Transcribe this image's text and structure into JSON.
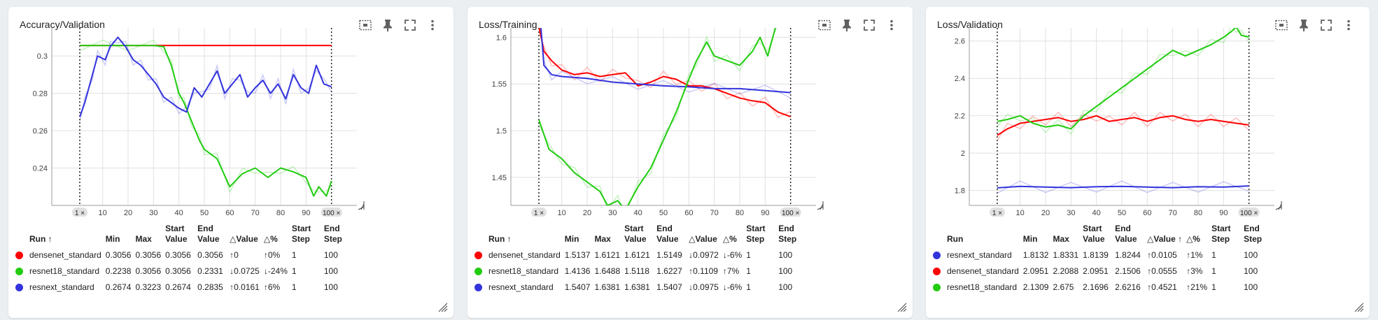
{
  "colors": {
    "red": "#ff0000",
    "green": "#22cc11",
    "blue": "#3333dd"
  },
  "toolbar_icons": [
    "fit-domain-icon",
    "pin-icon",
    "fullscreen-icon",
    "more-vert-icon"
  ],
  "panels": [
    {
      "title": "Accuracy/Validation",
      "headers": [
        "Run ↑",
        "Min",
        "Max",
        "Start Value",
        "End Value",
        "△Value",
        "△%",
        "Start Step",
        "End Step"
      ],
      "rows": [
        {
          "color": "red",
          "run": "densenet_standard",
          "min": "0.3056",
          "max": "0.3056",
          "start": "0.3056",
          "end": "0.3056",
          "dval": "↑0",
          "dpct": "↑0%",
          "sstep": "1",
          "estep": "100"
        },
        {
          "color": "green",
          "run": "resnet18_standard",
          "min": "0.2238",
          "max": "0.3056",
          "start": "0.3056",
          "end": "0.2331",
          "dval": "↓0.0725",
          "dpct": "↓-24%",
          "sstep": "1",
          "estep": "100"
        },
        {
          "color": "blue",
          "run": "resnext_standard",
          "min": "0.2674",
          "max": "0.3223",
          "start": "0.2674",
          "end": "0.2835",
          "dval": "↑0.0161",
          "dpct": "↑6%",
          "sstep": "1",
          "estep": "100"
        }
      ]
    },
    {
      "title": "Loss/Training",
      "headers": [
        "Run ↑",
        "Min",
        "Max",
        "Start Value",
        "End Value",
        "△Value",
        "△%",
        "Start Step",
        "End Step"
      ],
      "rows": [
        {
          "color": "red",
          "run": "densenet_standard",
          "min": "1.5137",
          "max": "1.6121",
          "start": "1.6121",
          "end": "1.5149",
          "dval": "↓0.0972",
          "dpct": "↓-6%",
          "sstep": "1",
          "estep": "100"
        },
        {
          "color": "green",
          "run": "resnet18_standard",
          "min": "1.4136",
          "max": "1.6488",
          "start": "1.5118",
          "end": "1.6227",
          "dval": "↑0.1109",
          "dpct": "↑7%",
          "sstep": "1",
          "estep": "100"
        },
        {
          "color": "blue",
          "run": "resnext_standard",
          "min": "1.5407",
          "max": "1.6381",
          "start": "1.6381",
          "end": "1.5407",
          "dval": "↓0.0975",
          "dpct": "↓-6%",
          "sstep": "1",
          "estep": "100"
        }
      ]
    },
    {
      "title": "Loss/Validation",
      "headers": [
        "Run",
        "Min",
        "Max",
        "Start Value",
        "End Value",
        "△Value ↑",
        "△%",
        "Start Step",
        "End Step"
      ],
      "rows": [
        {
          "color": "blue",
          "run": "resnext_standard",
          "min": "1.8132",
          "max": "1.8331",
          "start": "1.8139",
          "end": "1.8244",
          "dval": "↑0.0105",
          "dpct": "↑1%",
          "sstep": "1",
          "estep": "100"
        },
        {
          "color": "red",
          "run": "densenet_standard",
          "min": "2.0951",
          "max": "2.2088",
          "start": "2.0951",
          "end": "2.1506",
          "dval": "↑0.0555",
          "dpct": "↑3%",
          "sstep": "1",
          "estep": "100"
        },
        {
          "color": "green",
          "run": "resnet18_standard",
          "min": "2.1309",
          "max": "2.675",
          "start": "2.1696",
          "end": "2.6216",
          "dval": "↑0.4521",
          "dpct": "↑21%",
          "sstep": "1",
          "estep": "100"
        }
      ]
    }
  ],
  "chart_data": [
    {
      "type": "line",
      "title": "Accuracy/Validation",
      "xlim": [
        -10,
        110
      ],
      "ylim": [
        0.22,
        0.315
      ],
      "x_ticks": [
        10,
        20,
        30,
        40,
        50,
        60,
        70,
        80,
        90
      ],
      "y_ticks": [
        0.24,
        0.26,
        0.28,
        0.3
      ],
      "y_tick_labels": [
        "0.24",
        "0.26",
        "0.28",
        "0.3"
      ],
      "x_range_labels": [
        "1 ×",
        "100 ×"
      ],
      "grid": true,
      "series": [
        {
          "name": "densenet_standard",
          "color": "red",
          "x": [
            1,
            100
          ],
          "values": [
            0.3056,
            0.3056
          ]
        },
        {
          "name": "resnet18_standard",
          "color": "green",
          "x": [
            1,
            10,
            20,
            30,
            34,
            37,
            40,
            42,
            45,
            48,
            50,
            55,
            60,
            65,
            70,
            75,
            80,
            85,
            90,
            93,
            95,
            98,
            100
          ],
          "values": [
            0.3056,
            0.3056,
            0.3056,
            0.3056,
            0.305,
            0.295,
            0.28,
            0.275,
            0.265,
            0.255,
            0.25,
            0.245,
            0.23,
            0.237,
            0.24,
            0.235,
            0.24,
            0.238,
            0.235,
            0.225,
            0.23,
            0.225,
            0.2331
          ]
        },
        {
          "name": "resnext_standard",
          "color": "blue",
          "x": [
            1,
            3,
            6,
            8,
            11,
            13,
            16,
            19,
            22,
            25,
            28,
            31,
            34,
            37,
            40,
            43,
            46,
            49,
            52,
            55,
            58,
            61,
            64,
            67,
            70,
            73,
            76,
            79,
            82,
            85,
            88,
            91,
            94,
            97,
            100
          ],
          "values": [
            0.2674,
            0.275,
            0.29,
            0.3,
            0.298,
            0.305,
            0.31,
            0.305,
            0.298,
            0.295,
            0.29,
            0.285,
            0.278,
            0.275,
            0.272,
            0.27,
            0.283,
            0.278,
            0.285,
            0.292,
            0.28,
            0.285,
            0.29,
            0.278,
            0.283,
            0.287,
            0.28,
            0.285,
            0.277,
            0.29,
            0.283,
            0.28,
            0.295,
            0.285,
            0.2835
          ]
        }
      ]
    },
    {
      "type": "line",
      "title": "Loss/Training",
      "xlim": [
        -10,
        110
      ],
      "ylim": [
        1.42,
        1.61
      ],
      "x_ticks": [
        10,
        20,
        30,
        40,
        50,
        60,
        70,
        80,
        90
      ],
      "y_ticks": [
        1.45,
        1.5,
        1.55,
        1.6
      ],
      "y_tick_labels": [
        "1.45",
        "1.5",
        "1.55",
        "1.6"
      ],
      "x_range_labels": [
        "1 ×",
        "100 ×"
      ],
      "grid": true,
      "series": [
        {
          "name": "densenet_standard",
          "color": "red",
          "x": [
            1,
            3,
            6,
            10,
            15,
            20,
            25,
            30,
            35,
            40,
            45,
            50,
            55,
            60,
            65,
            70,
            75,
            80,
            85,
            90,
            95,
            100
          ],
          "values": [
            1.6121,
            1.585,
            1.575,
            1.565,
            1.56,
            1.562,
            1.558,
            1.56,
            1.562,
            1.548,
            1.552,
            1.558,
            1.555,
            1.548,
            1.548,
            1.545,
            1.54,
            1.535,
            1.532,
            1.53,
            1.52,
            1.5149
          ]
        },
        {
          "name": "resnext_standard",
          "color": "blue",
          "x": [
            1,
            3,
            6,
            10,
            20,
            30,
            40,
            50,
            60,
            70,
            80,
            90,
            100
          ],
          "values": [
            1.6381,
            1.57,
            1.56,
            1.558,
            1.556,
            1.552,
            1.55,
            1.548,
            1.547,
            1.545,
            1.545,
            1.543,
            1.5407
          ]
        },
        {
          "name": "resnet18_standard",
          "color": "green",
          "x": [
            1,
            5,
            10,
            15,
            20,
            25,
            28,
            32,
            35,
            40,
            45,
            50,
            55,
            60,
            63,
            67,
            70,
            75,
            80,
            85,
            88,
            91,
            95,
            97
          ],
          "values": [
            1.5118,
            1.48,
            1.47,
            1.455,
            1.445,
            1.435,
            1.42,
            1.425,
            1.415,
            1.44,
            1.46,
            1.49,
            1.52,
            1.555,
            1.575,
            1.595,
            1.58,
            1.575,
            1.57,
            1.585,
            1.6,
            1.58,
            1.62,
            1.6227
          ]
        }
      ]
    },
    {
      "type": "line",
      "title": "Loss/Validation",
      "xlim": [
        -10,
        110
      ],
      "ylim": [
        1.72,
        2.67
      ],
      "x_ticks": [
        10,
        20,
        30,
        40,
        50,
        60,
        70,
        80,
        90
      ],
      "y_ticks": [
        1.8,
        2,
        2.2,
        2.4,
        2.6
      ],
      "y_tick_labels": [
        "1.8",
        "2",
        "2.2",
        "2.4",
        "2.6"
      ],
      "x_range_labels": [
        "1 ×",
        "100 ×"
      ],
      "grid": true,
      "series": [
        {
          "name": "resnext_standard",
          "color": "blue",
          "x": [
            1,
            10,
            20,
            30,
            40,
            50,
            60,
            70,
            80,
            90,
            100
          ],
          "values": [
            1.8139,
            1.822,
            1.818,
            1.815,
            1.82,
            1.822,
            1.818,
            1.815,
            1.82,
            1.818,
            1.8244
          ]
        },
        {
          "name": "densenet_standard",
          "color": "red",
          "x": [
            1,
            5,
            10,
            15,
            20,
            25,
            30,
            35,
            40,
            45,
            50,
            55,
            60,
            65,
            70,
            75,
            80,
            85,
            90,
            95,
            100
          ],
          "values": [
            2.0951,
            2.13,
            2.16,
            2.17,
            2.18,
            2.19,
            2.17,
            2.18,
            2.2,
            2.17,
            2.18,
            2.19,
            2.17,
            2.19,
            2.2,
            2.18,
            2.17,
            2.18,
            2.17,
            2.16,
            2.1506
          ]
        },
        {
          "name": "resnet18_standard",
          "color": "green",
          "x": [
            1,
            5,
            10,
            15,
            20,
            25,
            30,
            35,
            40,
            45,
            50,
            55,
            60,
            65,
            70,
            75,
            80,
            85,
            90,
            93,
            95,
            97,
            100
          ],
          "values": [
            2.1696,
            2.18,
            2.2,
            2.16,
            2.14,
            2.15,
            2.13,
            2.2,
            2.25,
            2.3,
            2.35,
            2.4,
            2.45,
            2.5,
            2.55,
            2.52,
            2.55,
            2.58,
            2.62,
            2.65,
            2.675,
            2.63,
            2.6216
          ]
        }
      ]
    }
  ]
}
